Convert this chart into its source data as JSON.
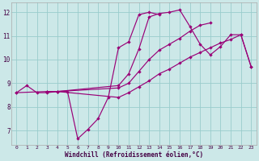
{
  "xlabel": "Windchill (Refroidissement éolien,°C)",
  "background_color": "#cce8e8",
  "grid_color": "#99cccc",
  "line_color": "#990077",
  "xlim": [
    -0.5,
    23.5
  ],
  "ylim": [
    6.4,
    12.4
  ],
  "xticks": [
    0,
    1,
    2,
    3,
    4,
    5,
    6,
    7,
    8,
    9,
    10,
    11,
    12,
    13,
    14,
    15,
    16,
    17,
    18,
    19,
    20,
    21,
    22,
    23
  ],
  "yticks": [
    7,
    8,
    9,
    10,
    11,
    12
  ],
  "lines": [
    {
      "x": [
        0,
        1,
        2,
        3,
        4,
        5,
        6,
        7,
        8,
        9,
        10,
        11,
        12,
        13,
        14
      ],
      "y": [
        8.6,
        8.9,
        8.6,
        8.6,
        8.65,
        8.65,
        6.65,
        7.05,
        7.5,
        8.4,
        10.5,
        10.75,
        11.9,
        12.0,
        11.9
      ]
    },
    {
      "x": [
        3,
        4,
        10,
        11,
        12,
        13,
        14,
        15,
        16,
        17,
        18,
        19,
        20,
        21,
        22,
        23
      ],
      "y": [
        8.65,
        8.65,
        8.9,
        9.4,
        10.45,
        11.8,
        11.95,
        12.0,
        12.1,
        11.4,
        10.65,
        10.2,
        10.55,
        11.05,
        11.05,
        9.7
      ]
    },
    {
      "x": [
        3,
        4,
        10,
        11,
        12,
        13,
        14,
        15,
        16,
        17,
        18,
        19,
        20,
        21,
        22
      ],
      "y": [
        8.65,
        8.65,
        8.8,
        9.0,
        9.5,
        10.0,
        10.4,
        10.65,
        10.9,
        11.2,
        11.45,
        11.55,
        null,
        null,
        null
      ]
    },
    {
      "x": [
        0,
        3,
        4,
        10,
        11,
        12,
        13,
        14,
        15,
        16,
        17,
        18,
        19,
        20,
        21,
        22,
        23
      ],
      "y": [
        8.6,
        8.65,
        8.65,
        8.4,
        8.6,
        8.85,
        9.1,
        9.4,
        9.6,
        9.85,
        10.1,
        10.3,
        10.5,
        10.7,
        10.85,
        11.05,
        9.7
      ]
    }
  ]
}
